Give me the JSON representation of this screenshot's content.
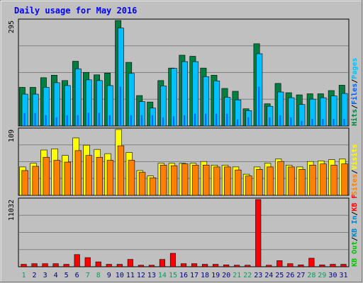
{
  "title": "Daily usage for May 2016",
  "colors": {
    "background": "#c0c0c0",
    "title": "#0000ff",
    "pages": "#00c0ff",
    "files": "#0060ff",
    "hits": "#008040",
    "visits": "#ffff00",
    "sites": "#ff8000",
    "kb_in": "#0080c0",
    "kb_out": "#00c000",
    "kb_f": "#ff0000",
    "weekend_label": "#00a060",
    "weekday_label": "#000080"
  },
  "panels": {
    "top": {
      "max_label": "295",
      "legend": [
        {
          "text": "Pages",
          "color": "#00c0ff"
        },
        {
          "text": "Files",
          "color": "#0060ff"
        },
        {
          "text": "Hits",
          "color": "#008040"
        }
      ]
    },
    "middle": {
      "max_label": "109",
      "legend": [
        {
          "text": "Visits",
          "color": "#ffff00"
        },
        {
          "text": "Sites",
          "color": "#ff8000"
        }
      ]
    },
    "bottom": {
      "max_label": "11032",
      "legend": [
        {
          "text": "KB F",
          "color": "#ff0000"
        },
        {
          "text": "KB In",
          "color": "#0080c0"
        },
        {
          "text": "KB Out",
          "color": "#00c000"
        }
      ]
    }
  },
  "chart_data": {
    "type": "bar",
    "categories": [
      "1",
      "2",
      "3",
      "4",
      "5",
      "6",
      "7",
      "8",
      "9",
      "10",
      "11",
      "12",
      "13",
      "14",
      "15",
      "16",
      "17",
      "18",
      "19",
      "20",
      "21",
      "22",
      "23",
      "24",
      "25",
      "26",
      "27",
      "28",
      "29",
      "30",
      "31"
    ],
    "weekend_days": [
      "1",
      "7",
      "8",
      "14",
      "15",
      "21",
      "22",
      "28",
      "29"
    ],
    "panels": [
      {
        "id": "top",
        "ylim": [
          0,
          295
        ],
        "series": [
          {
            "name": "Hits",
            "values": [
              108,
              108,
              135,
              142,
              127,
              181,
              150,
              143,
              148,
              295,
              178,
              85,
              67,
              127,
              162,
              198,
              195,
              162,
              142,
              105,
              97,
              48,
              230,
              62,
              119,
              93,
              87,
              90,
              90,
              99,
              114
            ]
          },
          {
            "name": "Pages",
            "values": [
              89,
              89,
              108,
              121,
              113,
              160,
              129,
              127,
              113,
              274,
              147,
              68,
              50,
              112,
              161,
              180,
              180,
              138,
              126,
              80,
              73,
              43,
              202,
              55,
              95,
              79,
              60,
              75,
              79,
              84,
              91
            ]
          },
          {
            "name": "Files",
            "values": [
              36,
              36,
              30,
              24,
              30,
              30,
              37,
              37,
              30,
              110,
              30,
              30,
              30,
              24,
              27,
              30,
              34,
              34,
              34,
              34,
              18,
              24,
              110,
              24,
              30,
              24,
              14,
              20,
              20,
              20,
              20
            ]
          }
        ]
      },
      {
        "id": "middle",
        "ylim": [
          0,
          109
        ],
        "series": [
          {
            "name": "Visits",
            "values": [
              47,
              53,
              75,
              77,
              66,
              95,
              83,
              76,
              69,
              109,
              71,
              41,
              32,
              53,
              53,
              53,
              53,
              56,
              50,
              50,
              47,
              35,
              47,
              53,
              60,
              50,
              47,
              56,
              57,
              59,
              60
            ]
          },
          {
            "name": "Sites",
            "values": [
              41,
              48,
              63,
              58,
              55,
              74,
              66,
              63,
              58,
              82,
              58,
              38,
              29,
              50,
              49,
              52,
              50,
              50,
              47,
              47,
              42,
              32,
              43,
              47,
              56,
              47,
              43,
              50,
              52,
              50,
              52
            ]
          }
        ]
      },
      {
        "id": "bottom",
        "ylim": [
          0,
          11032
        ],
        "series": [
          {
            "name": "KB F",
            "values": [
              400,
              500,
              500,
              500,
              400,
              2000,
              1500,
              800,
              400,
              400,
              1200,
              250,
              250,
              1200,
              2200,
              500,
              500,
              400,
              400,
              300,
              250,
              250,
              11032,
              250,
              1000,
              500,
              300,
              1400,
              300,
              400,
              400
            ]
          },
          {
            "name": "KB In",
            "values": [
              0,
              0,
              0,
              0,
              0,
              0,
              0,
              0,
              0,
              0,
              0,
              0,
              0,
              0,
              0,
              0,
              0,
              0,
              0,
              0,
              0,
              0,
              0,
              0,
              0,
              0,
              0,
              0,
              0,
              0,
              0
            ]
          },
          {
            "name": "KB Out",
            "values": [
              0,
              0,
              0,
              0,
              0,
              0,
              0,
              0,
              0,
              0,
              0,
              0,
              0,
              0,
              0,
              0,
              0,
              0,
              0,
              0,
              0,
              0,
              0,
              0,
              0,
              0,
              0,
              0,
              0,
              0,
              0
            ]
          }
        ]
      }
    ]
  }
}
